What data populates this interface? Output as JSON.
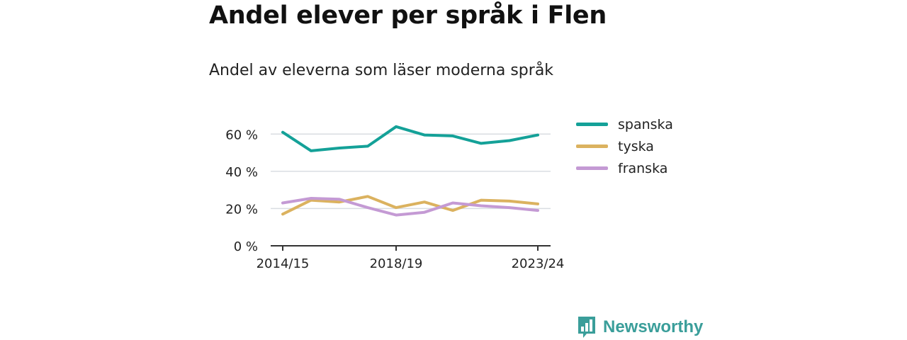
{
  "title": "Andel elever per språk i Flen",
  "subtitle": "Andel av eleverna som läser moderna språk",
  "brand": "Newsworthy",
  "chart_data": {
    "type": "line",
    "x": [
      "2014/15",
      "2015/16",
      "2016/17",
      "2017/18",
      "2018/19",
      "2019/20",
      "2020/21",
      "2021/22",
      "2022/23",
      "2023/24"
    ],
    "x_tick_labels": [
      "2014/15",
      "2018/19",
      "2023/24"
    ],
    "y_tick_labels": [
      "0 %",
      "20 %",
      "40 %",
      "60 %"
    ],
    "ylim": [
      0,
      70
    ],
    "grid": true,
    "legend_position": "right",
    "series": [
      {
        "name": "spanska",
        "color": "#14a198",
        "values": [
          61,
          51,
          52.5,
          53.5,
          64,
          59.5,
          59,
          55,
          56.5,
          59.5
        ]
      },
      {
        "name": "tyska",
        "color": "#dbb25f",
        "values": [
          17,
          24.5,
          23.5,
          26.5,
          20.5,
          23.5,
          19,
          24.5,
          24,
          22.5
        ]
      },
      {
        "name": "franska",
        "color": "#c49ad4",
        "values": [
          23,
          25.5,
          25,
          20.5,
          16.5,
          18,
          23,
          21.5,
          20.5,
          19
        ]
      }
    ]
  }
}
